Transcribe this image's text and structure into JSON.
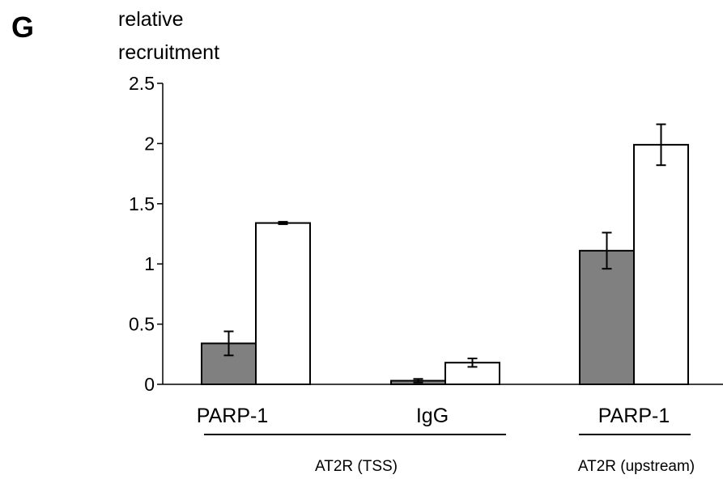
{
  "chart_data": {
    "type": "bar",
    "panel_label": "G",
    "title": "",
    "ylabel_lines": [
      "relative",
      "recruitment"
    ],
    "xlabel": "",
    "ylim": [
      0,
      2.5
    ],
    "yticks": [
      0,
      0.5,
      1,
      1.5,
      2,
      2.5
    ],
    "ytick_labels": [
      "0",
      "0.5",
      "1",
      "1.5",
      "2",
      "2.5"
    ],
    "grid": false,
    "legend": "none",
    "categories": [
      "PARP-1",
      "IgG",
      "PARP-1"
    ],
    "series": [
      {
        "color": "#808080",
        "values": [
          0.34,
          0.03,
          1.11
        ],
        "errors": [
          0.1,
          0.015,
          0.15
        ]
      },
      {
        "color": "#ffffff",
        "values": [
          1.34,
          0.18,
          1.99
        ],
        "errors": [
          0.01,
          0.035,
          0.17
        ]
      }
    ],
    "groups": [
      {
        "label": "AT2R (TSS)",
        "category_indices": [
          0,
          1
        ]
      },
      {
        "label": "AT2R (upstream)",
        "category_indices": [
          2
        ]
      }
    ]
  }
}
